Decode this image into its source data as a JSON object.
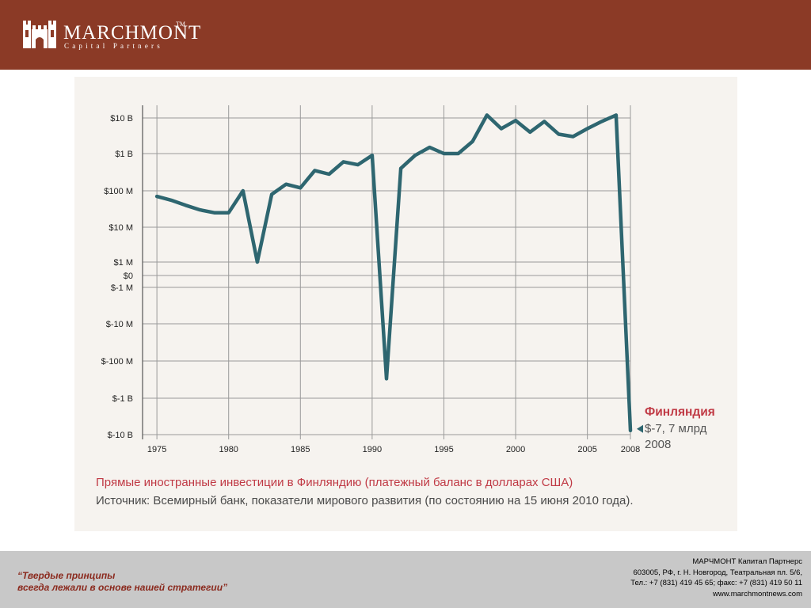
{
  "header": {
    "brand_name": "MARCHMONT",
    "brand_tm": "TM",
    "brand_sub": "Capital Partners",
    "colors": {
      "bar": "#8b3a26",
      "text": "#ffffff"
    },
    "logo_icon": "castle-tower-icon"
  },
  "chart_data": {
    "type": "line",
    "y_scale": "symmetric-log",
    "x_ticks": [
      "1975",
      "1980",
      "1985",
      "1990",
      "1995",
      "2000",
      "2005",
      "2008"
    ],
    "y_ticks": [
      "$10 B",
      "$1 B",
      "$100 M",
      "$10 M",
      "$1 M",
      "$0",
      "$-1 M",
      "$-10 M",
      "$-100 M",
      "$-1 B",
      "$-10 B"
    ],
    "xlim": [
      1974,
      2008
    ],
    "ylim": [
      "$-10 B",
      "$10 B"
    ],
    "grid": true,
    "line_color": "#2e6670",
    "series": [
      {
        "values_usd": [
          [
            1975,
            70000000
          ],
          [
            1976,
            55000000
          ],
          [
            1977,
            40000000
          ],
          [
            1978,
            30000000
          ],
          [
            1979,
            25000000
          ],
          [
            1980,
            25000000
          ],
          [
            1981,
            100000000
          ],
          [
            1982,
            1000000
          ],
          [
            1983,
            80000000
          ],
          [
            1984,
            150000000
          ],
          [
            1985,
            120000000
          ],
          [
            1986,
            350000000
          ],
          [
            1987,
            280000000
          ],
          [
            1988,
            600000000
          ],
          [
            1989,
            500000000
          ],
          [
            1990,
            900000000
          ],
          [
            1991,
            -300000000
          ],
          [
            1992,
            400000000
          ],
          [
            1993,
            900000000
          ],
          [
            1994,
            1500000000
          ],
          [
            1995,
            1000000000
          ],
          [
            1996,
            1000000000
          ],
          [
            1997,
            2200000000
          ],
          [
            1998,
            12000000000
          ],
          [
            1999,
            5000000000
          ],
          [
            2000,
            8500000000
          ],
          [
            2001,
            4000000000
          ],
          [
            2002,
            8000000000
          ],
          [
            2003,
            3500000000
          ],
          [
            2004,
            3000000000
          ],
          [
            2005,
            5000000000
          ],
          [
            2006,
            8000000000
          ],
          [
            2007,
            12000000000
          ],
          [
            2008,
            -7700000000
          ]
        ]
      }
    ],
    "end_label": {
      "country": "Финляндия",
      "value": "$-7, 7 млрд",
      "year": "2008",
      "marker_icon": "left-triangle-icon",
      "country_color": "#c03a45",
      "value_color": "#555555"
    }
  },
  "caption": {
    "title": "Прямые иностранные инвестиции в Финляндию (платежный баланс в долларах США)",
    "source": "Источник: Всемирный банк, показатели мирового развития (по состоянию на 15 июня 2010 года).",
    "title_color": "#c03a45"
  },
  "footer": {
    "slogan_line1": "“Твердые принципы",
    "slogan_line2": "всегда лежали в основе нашей стратегии”",
    "company": "МАРЧМОНТ Капитал Партнерс",
    "address": "603005, РФ, г. Н. Новгород, Театральная пл. 5/6,",
    "phones": "Тел.: +7 (831) 419 45 65; факс: +7 (831) 419 50 11",
    "website": "www.marchmontnews.com",
    "colors": {
      "bar": "#c8c8c8",
      "slogan": "#8b2a1e"
    }
  }
}
